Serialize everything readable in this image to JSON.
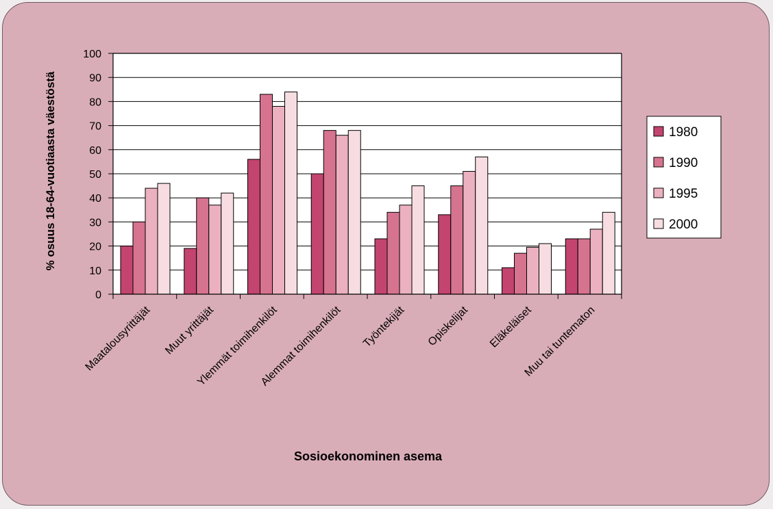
{
  "chart_data": {
    "type": "bar",
    "title": "",
    "xlabel": "Sosioekonominen asema",
    "ylabel": "% osuus 18-64-vuotiaasta väestöstä",
    "ylim": [
      0,
      100
    ],
    "yticks": [
      0,
      10,
      20,
      30,
      40,
      50,
      60,
      70,
      80,
      90,
      100
    ],
    "grid": true,
    "legend_position": "right",
    "categories": [
      "Maatalousyrittäjät",
      "Muut yrittäjät",
      "Ylemmät toimihenkilöt",
      "Alemmat toimihenkilöt",
      "Työntekijät",
      "Opiskelijat",
      "Eläkeläiset",
      "Muu tai tuntematon"
    ],
    "series": [
      {
        "name": "1980",
        "color": "#c2446f",
        "values": [
          20,
          19,
          56,
          50,
          23,
          33,
          11,
          23
        ]
      },
      {
        "name": "1990",
        "color": "#d6738f",
        "values": [
          30,
          40,
          83,
          68,
          34,
          45,
          17,
          23
        ]
      },
      {
        "name": "1995",
        "color": "#ebb1c0",
        "values": [
          44,
          37,
          78,
          66,
          37,
          51,
          19.5,
          27
        ]
      },
      {
        "name": "2000",
        "color": "#f7dde2",
        "values": [
          46,
          42,
          84,
          68,
          45,
          57,
          21,
          34
        ]
      }
    ]
  }
}
